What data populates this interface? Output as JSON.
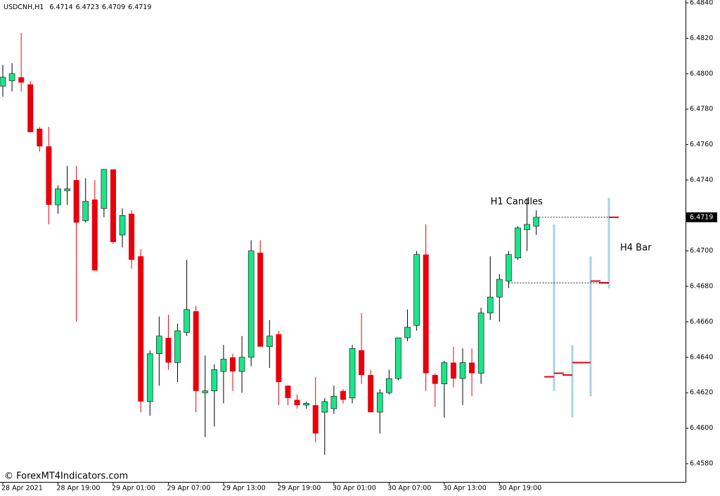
{
  "chart_data": {
    "type": "candlestick",
    "symbol": "USDCNH,H1",
    "watermark": "© ForexMT4Indicators.com",
    "categories": [
      "28 Apr 2021",
      null,
      null,
      null,
      null,
      null,
      "28 Apr 19:00",
      null,
      null,
      null,
      null,
      null,
      "29 Apr 01:00",
      null,
      null,
      null,
      null,
      null,
      "29 Apr 07:00",
      null,
      null,
      null,
      null,
      null,
      "29 Apr 13:00",
      null,
      null,
      null,
      null,
      null,
      "29 Apr 19:00",
      null,
      null,
      null,
      null,
      null,
      "30 Apr 01:00",
      null,
      null,
      null,
      null,
      null,
      "30 Apr 07:00",
      null,
      null,
      null,
      null,
      null,
      "30 Apr 13:00",
      null,
      null,
      null,
      null,
      null,
      "30 Apr 19:00",
      null,
      null,
      null,
      null
    ],
    "series": [
      {
        "name": "H1 Candles",
        "up_color": "#1ee38a",
        "down_color": "#e8000b",
        "open": [
          6.4793,
          6.4796,
          6.4798,
          6.4794,
          6.4769,
          6.4759,
          6.4726,
          6.4734,
          6.474,
          6.4717,
          6.4729,
          6.4724,
          6.4746,
          6.4709,
          6.4721,
          6.4697,
          6.4615,
          6.4642,
          6.4651,
          6.4637,
          6.4654,
          6.4666,
          6.462,
          6.4621,
          6.4632,
          6.464,
          6.4632,
          6.464,
          6.4699,
          6.4646,
          6.4653,
          6.4624,
          6.4616,
          6.4613,
          6.4613,
          6.4609,
          6.4611,
          6.4621,
          6.4617,
          6.4644,
          6.463,
          6.4609,
          6.462,
          6.4628,
          6.4651,
          6.4658,
          6.4698,
          6.463,
          6.4625,
          6.4637,
          6.4628,
          6.4637,
          6.4631,
          6.4665,
          6.4674,
          6.4683,
          6.4696,
          6.4712,
          6.4714
        ],
        "high": [
          6.4805,
          6.4806,
          6.4823,
          6.4796,
          6.477,
          6.477,
          6.4737,
          6.4748,
          6.4748,
          6.4741,
          6.474,
          6.4746,
          6.4746,
          6.4724,
          6.4723,
          6.4701,
          6.4644,
          6.4663,
          6.4664,
          6.4659,
          6.4695,
          6.4669,
          6.4641,
          6.4636,
          6.4647,
          6.4642,
          6.4652,
          6.4706,
          6.4706,
          6.4661,
          6.4655,
          6.4624,
          6.4619,
          6.4615,
          6.4629,
          6.4617,
          6.4624,
          6.4622,
          6.4647,
          6.4665,
          6.4633,
          6.4622,
          6.4633,
          6.4651,
          6.4667,
          6.47,
          6.4715,
          6.4631,
          6.4638,
          6.4646,
          6.4645,
          6.4645,
          6.4668,
          6.4697,
          6.4687,
          6.47,
          6.4714,
          6.473,
          6.4723
        ],
        "low": [
          6.4787,
          6.479,
          6.479,
          6.4767,
          6.4756,
          6.4715,
          6.4721,
          6.4726,
          6.466,
          6.4716,
          6.4689,
          6.4719,
          6.4704,
          6.4702,
          6.469,
          6.4609,
          6.4607,
          6.4624,
          6.4633,
          6.4626,
          6.4652,
          6.4609,
          6.4595,
          6.4601,
          6.4614,
          6.4621,
          6.462,
          6.4635,
          6.4646,
          6.4634,
          6.4613,
          6.4613,
          6.4611,
          6.4611,
          6.4592,
          6.4585,
          6.4608,
          6.4614,
          6.4614,
          6.4625,
          6.4609,
          6.4597,
          6.4619,
          6.4627,
          6.4649,
          6.4655,
          6.4621,
          6.4612,
          6.4606,
          6.4623,
          6.4613,
          6.4618,
          6.4625,
          6.4661,
          6.466,
          6.4679,
          6.4695,
          6.47,
          6.4709
        ],
        "close": [
          6.4798,
          6.48,
          6.4795,
          6.4767,
          6.4759,
          6.4726,
          6.4735,
          6.4735,
          6.4716,
          6.4728,
          6.4689,
          6.4746,
          6.4705,
          6.472,
          6.4695,
          6.4615,
          6.4642,
          6.4652,
          6.4637,
          6.4655,
          6.4667,
          6.4621,
          6.4621,
          6.4633,
          6.4639,
          6.4632,
          6.464,
          6.47,
          6.4646,
          6.4652,
          6.4626,
          6.4617,
          6.4613,
          6.4614,
          6.4597,
          6.4615,
          6.4618,
          6.4616,
          6.4645,
          6.463,
          6.4609,
          6.462,
          6.4628,
          6.4651,
          6.4657,
          6.4698,
          6.4631,
          6.4625,
          6.4637,
          6.4628,
          6.4637,
          6.4631,
          6.4665,
          6.4674,
          6.4684,
          6.4698,
          6.4713,
          6.4715,
          6.4719
        ]
      },
      {
        "name": "H4 Bar",
        "color": "#a8d4e6",
        "tick_color": "#e8000b",
        "open": [
          6.4629,
          6.463,
          6.4637,
          6.4682
        ],
        "high": [
          6.4715,
          6.4647,
          6.4697,
          6.473
        ],
        "low": [
          6.4621,
          6.4606,
          6.4618,
          6.4679
        ],
        "close": [
          6.4631,
          6.4637,
          6.4683,
          6.4719
        ]
      }
    ],
    "ylim": [
      6.458,
      6.484
    ],
    "yticks": [
      {
        "value": 6.458,
        "label": "6.4580"
      },
      {
        "value": 6.46,
        "label": "6.4600"
      },
      {
        "value": 6.462,
        "label": "6.4620"
      },
      {
        "value": 6.464,
        "label": "6.4640"
      },
      {
        "value": 6.466,
        "label": "6.4660"
      },
      {
        "value": 6.468,
        "label": "6.4680"
      },
      {
        "value": 6.47,
        "label": "6.4700"
      },
      {
        "value": 6.474,
        "label": "6.4740"
      },
      {
        "value": 6.476,
        "label": "6.4760"
      },
      {
        "value": 6.478,
        "label": "6.4780"
      },
      {
        "value": 6.48,
        "label": "6.4800"
      },
      {
        "value": 6.482,
        "label": "6.4820"
      },
      {
        "value": 6.484,
        "label": "6.4840"
      }
    ],
    "grid": false
  }
}
